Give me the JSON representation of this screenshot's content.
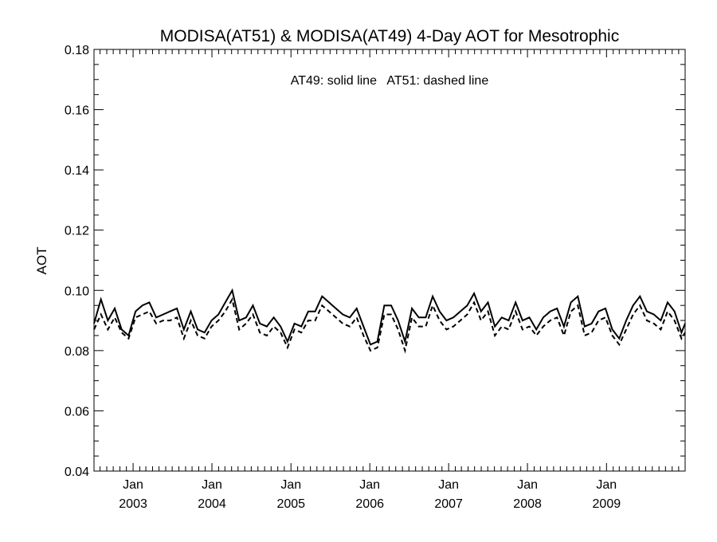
{
  "chart_data": {
    "type": "line",
    "title": "MODISA(AT51) & MODISA(AT49) 4-Day AOT for Mesotrophic",
    "annotation": "AT49: solid line   AT51: dashed line",
    "xlabel": "",
    "ylabel": "AOT",
    "xlim": [
      "2002-07-04",
      "2009-12-31"
    ],
    "ylim": [
      0.04,
      0.18
    ],
    "y_ticks": [
      "0.04",
      "0.06",
      "0.08",
      "0.10",
      "0.12",
      "0.14",
      "0.16",
      "0.18"
    ],
    "x_ticks": [
      {
        "month": "Jan",
        "year": "2003",
        "date": "2003-01-01"
      },
      {
        "month": "Jan",
        "year": "2004",
        "date": "2004-01-01"
      },
      {
        "month": "Jan",
        "year": "2005",
        "date": "2005-01-01"
      },
      {
        "month": "Jan",
        "year": "2006",
        "date": "2006-01-01"
      },
      {
        "month": "Jan",
        "year": "2007",
        "date": "2007-01-01"
      },
      {
        "month": "Jan",
        "year": "2008",
        "date": "2008-01-01"
      },
      {
        "month": "Jan",
        "year": "2009",
        "date": "2009-01-01"
      }
    ],
    "grid": false,
    "legend": "none",
    "x": [
      "2002-07-04",
      "2002-08-05",
      "2002-09-06",
      "2002-10-08",
      "2002-11-09",
      "2002-12-11",
      "2003-01-12",
      "2003-02-13",
      "2003-03-17",
      "2003-04-18",
      "2003-05-20",
      "2003-06-21",
      "2003-07-23",
      "2003-08-24",
      "2003-09-25",
      "2003-10-27",
      "2003-11-28",
      "2003-12-30",
      "2004-01-31",
      "2004-03-03",
      "2004-04-04",
      "2004-05-06",
      "2004-06-07",
      "2004-07-09",
      "2004-08-10",
      "2004-09-11",
      "2004-10-13",
      "2004-11-14",
      "2004-12-16",
      "2005-01-17",
      "2005-02-18",
      "2005-03-22",
      "2005-04-23",
      "2005-05-25",
      "2005-06-26",
      "2005-07-28",
      "2005-08-29",
      "2005-09-30",
      "2005-11-01",
      "2005-12-03",
      "2006-01-04",
      "2006-02-05",
      "2006-03-09",
      "2006-04-10",
      "2006-05-12",
      "2006-06-13",
      "2006-07-15",
      "2006-08-16",
      "2006-09-17",
      "2006-10-19",
      "2006-11-20",
      "2006-12-22",
      "2007-01-23",
      "2007-02-24",
      "2007-03-28",
      "2007-04-29",
      "2007-05-31",
      "2007-07-02",
      "2007-08-03",
      "2007-09-04",
      "2007-10-06",
      "2007-11-07",
      "2007-12-09",
      "2008-01-10",
      "2008-02-11",
      "2008-03-14",
      "2008-04-15",
      "2008-05-17",
      "2008-06-18",
      "2008-07-20",
      "2008-08-21",
      "2008-09-22",
      "2008-10-24",
      "2008-11-25",
      "2008-12-27",
      "2009-01-28",
      "2009-03-01",
      "2009-04-02",
      "2009-05-04",
      "2009-06-05",
      "2009-07-07",
      "2009-08-08",
      "2009-09-09",
      "2009-10-11",
      "2009-11-12",
      "2009-12-14",
      "2009-12-31"
    ],
    "series": [
      {
        "name": "AT49",
        "style": "solid",
        "color": "#000000",
        "values": [
          0.089,
          0.097,
          0.09,
          0.094,
          0.087,
          0.085,
          0.093,
          0.095,
          0.096,
          0.091,
          0.092,
          0.093,
          0.094,
          0.087,
          0.093,
          0.087,
          0.086,
          0.09,
          0.092,
          0.096,
          0.1,
          0.09,
          0.091,
          0.095,
          0.089,
          0.088,
          0.091,
          0.088,
          0.083,
          0.089,
          0.088,
          0.093,
          0.093,
          0.098,
          0.096,
          0.094,
          0.092,
          0.091,
          0.094,
          0.088,
          0.082,
          0.083,
          0.095,
          0.095,
          0.09,
          0.083,
          0.094,
          0.091,
          0.091,
          0.098,
          0.093,
          0.09,
          0.091,
          0.093,
          0.095,
          0.099,
          0.093,
          0.096,
          0.088,
          0.091,
          0.09,
          0.096,
          0.09,
          0.091,
          0.087,
          0.091,
          0.093,
          0.094,
          0.088,
          0.096,
          0.098,
          0.088,
          0.089,
          0.093,
          0.094,
          0.087,
          0.084,
          0.09,
          0.095,
          0.098,
          0.093,
          0.092,
          0.09,
          0.096,
          0.093,
          0.086,
          0.089
        ]
      },
      {
        "name": "AT51",
        "style": "dashed",
        "color": "#000000",
        "values": [
          0.087,
          0.092,
          0.087,
          0.091,
          0.086,
          0.084,
          0.091,
          0.092,
          0.093,
          0.089,
          0.09,
          0.09,
          0.091,
          0.084,
          0.09,
          0.085,
          0.084,
          0.088,
          0.09,
          0.093,
          0.097,
          0.087,
          0.089,
          0.092,
          0.086,
          0.085,
          0.088,
          0.086,
          0.081,
          0.087,
          0.086,
          0.09,
          0.09,
          0.095,
          0.093,
          0.091,
          0.089,
          0.088,
          0.091,
          0.085,
          0.08,
          0.081,
          0.092,
          0.092,
          0.087,
          0.08,
          0.091,
          0.088,
          0.088,
          0.095,
          0.09,
          0.087,
          0.088,
          0.09,
          0.092,
          0.096,
          0.09,
          0.093,
          0.085,
          0.088,
          0.087,
          0.093,
          0.087,
          0.088,
          0.085,
          0.088,
          0.09,
          0.091,
          0.085,
          0.093,
          0.095,
          0.085,
          0.086,
          0.09,
          0.091,
          0.085,
          0.082,
          0.087,
          0.092,
          0.095,
          0.09,
          0.089,
          0.087,
          0.093,
          0.09,
          0.084,
          0.086
        ]
      }
    ]
  }
}
